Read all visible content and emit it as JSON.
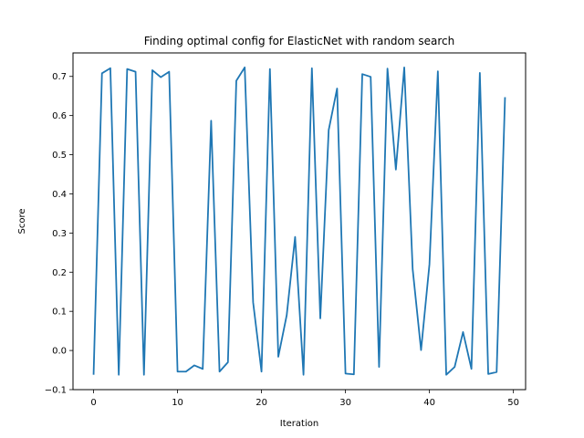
{
  "chart_data": {
    "type": "line",
    "title": "Finding optimal config for ElasticNet with random search",
    "xlabel": "Iteration",
    "ylabel": "Score",
    "xlim": [
      -2.45,
      51.45
    ],
    "ylim": [
      -0.1,
      0.76
    ],
    "xticks": [
      0,
      10,
      20,
      30,
      40,
      50
    ],
    "yticks": [
      -0.1,
      0.0,
      0.1,
      0.2,
      0.3,
      0.4,
      0.5,
      0.6,
      0.7
    ],
    "ytick_labels": [
      "−0.1",
      "0.0",
      "0.1",
      "0.2",
      "0.3",
      "0.4",
      "0.5",
      "0.6",
      "0.7"
    ],
    "grid": false,
    "series": [
      {
        "color": "#1f77b4",
        "x": [
          0,
          1,
          2,
          3,
          4,
          5,
          6,
          7,
          8,
          9,
          10,
          11,
          12,
          13,
          14,
          15,
          16,
          17,
          18,
          19,
          20,
          21,
          22,
          23,
          24,
          25,
          26,
          27,
          28,
          29,
          30,
          31,
          32,
          33,
          34,
          35,
          36,
          37,
          38,
          39,
          40,
          41,
          42,
          43,
          44,
          45,
          46,
          47,
          48,
          49
        ],
        "values": [
          -0.062,
          0.708,
          0.721,
          -0.062,
          0.719,
          0.712,
          -0.062,
          0.716,
          0.698,
          0.712,
          -0.054,
          -0.054,
          -0.038,
          -0.047,
          0.587,
          -0.054,
          -0.03,
          0.689,
          0.723,
          0.123,
          -0.054,
          0.719,
          -0.016,
          0.09,
          0.29,
          -0.062,
          0.721,
          0.082,
          0.563,
          0.669,
          -0.059,
          -0.061,
          0.706,
          0.699,
          -0.042,
          0.72,
          0.462,
          0.723,
          0.208,
          0.001,
          0.22,
          0.713,
          -0.062,
          -0.042,
          0.047,
          -0.047,
          0.709,
          -0.06,
          -0.055,
          0.647
        ]
      }
    ]
  }
}
